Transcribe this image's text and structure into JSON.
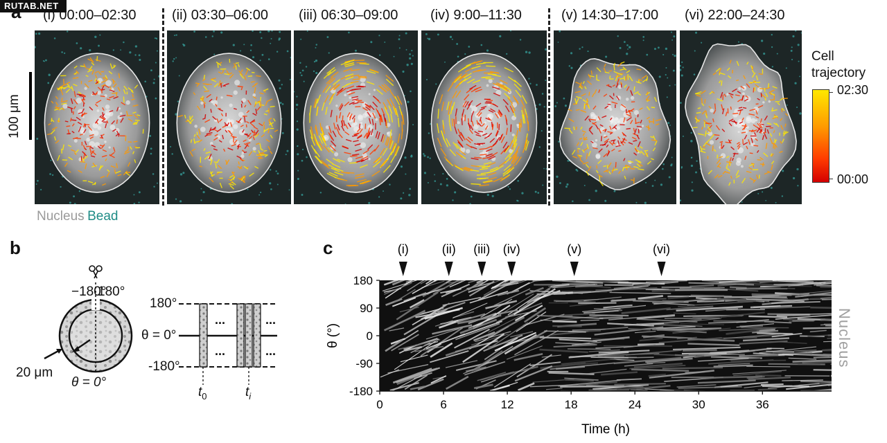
{
  "watermark": "RUTAB.NET",
  "panel_a": {
    "letter": "a",
    "panels": [
      {
        "label": "(i) 00:00–02:30"
      },
      {
        "label": "(ii) 03:30–06:00"
      },
      {
        "label": "(iii) 06:30–09:00"
      },
      {
        "label": "(iv) 9:00–11:30"
      },
      {
        "label": "(v) 14:30–17:00"
      },
      {
        "label": "(vi) 22:00–24:30"
      }
    ],
    "scale_bar": "100 μm",
    "legend_nucleus": "Nucleus",
    "legend_bead": "Bead",
    "colorbar": {
      "title_line1": "Cell",
      "title_line2": "trajectory",
      "max": "02:30",
      "min": "00:00",
      "colors": [
        "#ffe800",
        "#ff9a00",
        "#ff3b00",
        "#d40000"
      ]
    }
  },
  "panel_b": {
    "letter": "b",
    "cut_left": "−180°",
    "cut_right": "180°",
    "radius_label": "20 μm",
    "theta_zero": "θ = 0°",
    "axis_top": "180°",
    "axis_mid": "θ = 0°",
    "axis_bottom": "-180°",
    "dots": "...",
    "t0": "t",
    "t0_sub": "0",
    "ti": "t",
    "ti_sub": "i"
  },
  "panel_c": {
    "letter": "c",
    "side_label": "Nucleus",
    "chart_data": {
      "type": "heatmap",
      "xlabel": "Time (h)",
      "ylabel": "θ (°)",
      "x_ticks": [
        0,
        6,
        12,
        18,
        24,
        30,
        36
      ],
      "y_ticks": [
        180,
        90,
        0,
        -90,
        -180
      ],
      "xlim": [
        0,
        42.5
      ],
      "ylim": [
        -180,
        180
      ],
      "markers": [
        {
          "label": "(i)",
          "time": 2.2
        },
        {
          "label": "(ii)",
          "time": 6.5
        },
        {
          "label": "(iii)",
          "time": 9.6
        },
        {
          "label": "(iv)",
          "time": 12.4
        },
        {
          "label": "(v)",
          "time": 18.3
        },
        {
          "label": "(vi)",
          "time": 26.5
        }
      ]
    }
  }
}
